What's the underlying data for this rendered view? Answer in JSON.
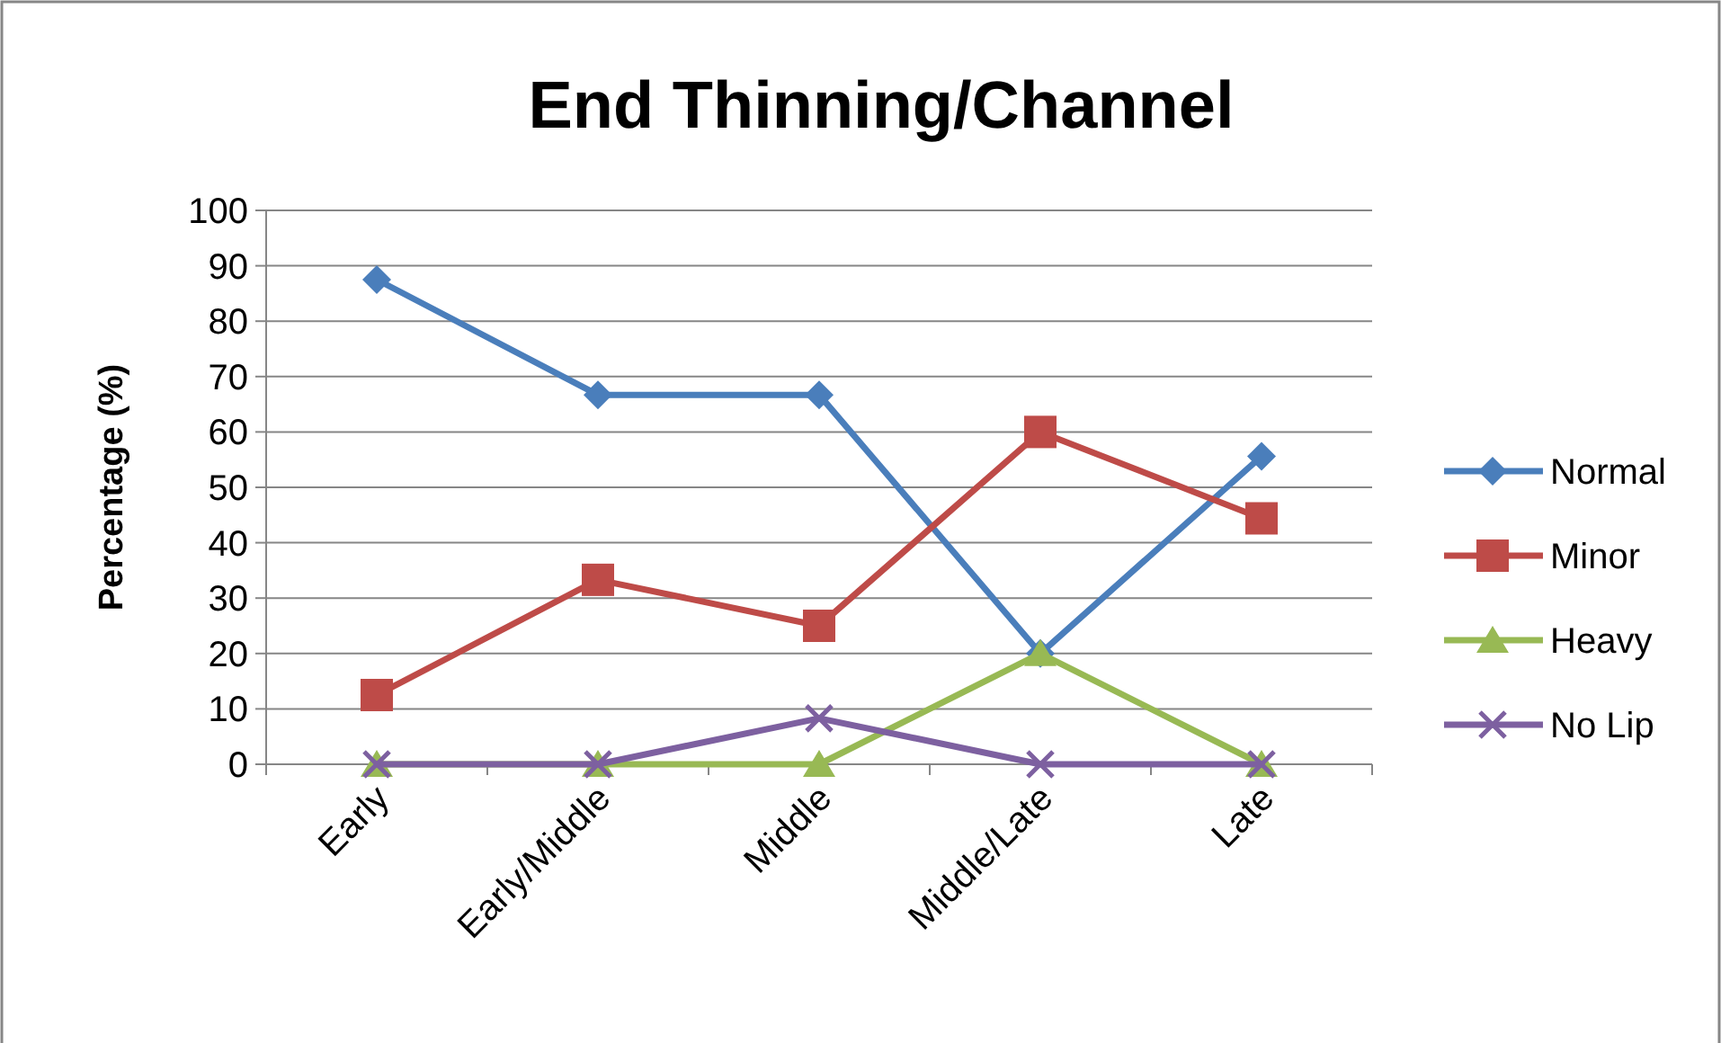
{
  "chart_data": {
    "type": "line",
    "title": "End Thinning/Channel",
    "ylabel": "Percentage (%)",
    "categories": [
      "Early",
      "Early/Middle",
      "Middle",
      "Middle/Late",
      "Late"
    ],
    "series": [
      {
        "name": "Normal",
        "color": "#4a7ebb",
        "marker": "diamond",
        "values": [
          87.5,
          66.7,
          66.7,
          20,
          55.6
        ]
      },
      {
        "name": "Minor",
        "color": "#be4b48",
        "marker": "square",
        "values": [
          12.5,
          33.3,
          25,
          60,
          44.4
        ]
      },
      {
        "name": "Heavy",
        "color": "#98b954",
        "marker": "triangle",
        "values": [
          0,
          0,
          0,
          20,
          0
        ]
      },
      {
        "name": "No Lip",
        "color": "#7d60a0",
        "marker": "cross",
        "values": [
          0,
          0,
          8.3,
          0,
          0
        ]
      }
    ],
    "ylim": [
      0,
      100
    ],
    "yticks": [
      0,
      10,
      20,
      30,
      40,
      50,
      60,
      70,
      80,
      90,
      100
    ],
    "grid": "y",
    "legend": "right",
    "line_style": "solid"
  }
}
